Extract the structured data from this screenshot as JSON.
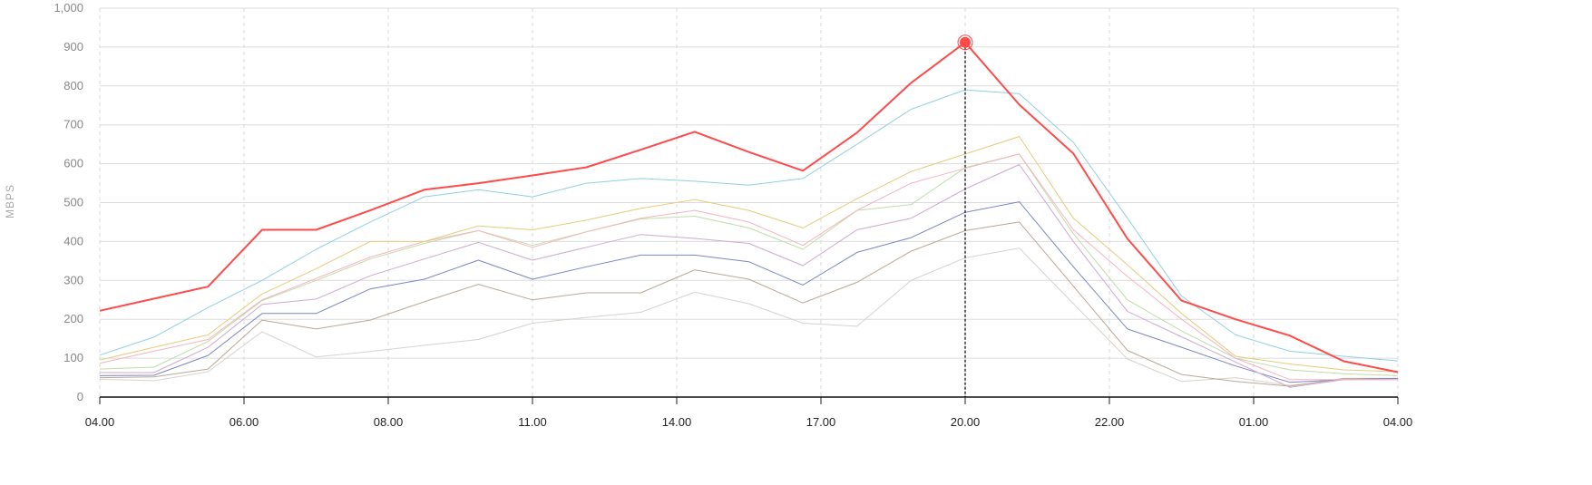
{
  "chart_data": {
    "type": "line",
    "title": "",
    "xlabel": "",
    "ylabel": "MBPS",
    "ylim": [
      0,
      1000
    ],
    "yticks": [
      "0",
      "100",
      "200",
      "300",
      "400",
      "500",
      "600",
      "700",
      "800",
      "900",
      "1,000"
    ],
    "xticks": [
      "04.00",
      "06.00",
      "08.00",
      "11.00",
      "14.00",
      "17.00",
      "20.00",
      "22.00",
      "01.00",
      "04.00"
    ],
    "grid": true,
    "points_per_series": 25,
    "series": [
      {
        "color": "#ff4a4a",
        "width": 2,
        "values": [
          222,
          253,
          284,
          430,
          430,
          480,
          533,
          550,
          570,
          591,
          636,
          682,
          630,
          582,
          680,
          808,
          912,
          752,
          626,
          407,
          248,
          200,
          158,
          92,
          64
        ]
      },
      {
        "color": "#8fd0e4",
        "width": 1,
        "values": [
          108,
          154,
          230,
          300,
          380,
          450,
          515,
          533,
          515,
          550,
          562,
          555,
          545,
          562,
          650,
          740,
          790,
          780,
          655,
          460,
          260,
          160,
          118,
          105,
          93
        ]
      },
      {
        "color": "#e3cd7a",
        "width": 1,
        "values": [
          95,
          128,
          160,
          265,
          330,
          400,
          400,
          440,
          430,
          455,
          485,
          508,
          480,
          435,
          510,
          580,
          625,
          670,
          460,
          340,
          215,
          105,
          85,
          70,
          65
        ]
      },
      {
        "color": "#f6b3c0",
        "width": 1,
        "values": [
          87,
          118,
          148,
          250,
          305,
          360,
          400,
          428,
          385,
          425,
          460,
          480,
          450,
          390,
          480,
          550,
          588,
          625,
          430,
          310,
          200,
          100,
          45,
          45,
          45
        ]
      },
      {
        "color": "#bfdda8",
        "width": 1,
        "values": [
          72,
          77,
          143,
          248,
          300,
          355,
          395,
          428,
          390,
          425,
          458,
          465,
          435,
          380,
          480,
          495,
          590,
          625,
          420,
          250,
          170,
          100,
          70,
          60,
          55
        ]
      },
      {
        "color": "#cfa9cf",
        "width": 1,
        "values": [
          63,
          63,
          128,
          238,
          252,
          312,
          355,
          398,
          352,
          385,
          418,
          408,
          395,
          338,
          430,
          460,
          535,
          598,
          400,
          220,
          155,
          90,
          25,
          45,
          45
        ]
      },
      {
        "color": "#7b86c4",
        "width": 1,
        "values": [
          55,
          56,
          107,
          215,
          215,
          278,
          303,
          352,
          303,
          335,
          365,
          365,
          348,
          288,
          372,
          410,
          475,
          502,
          335,
          175,
          128,
          80,
          38,
          45,
          48
        ]
      },
      {
        "color": "#bba896",
        "width": 1,
        "values": [
          50,
          52,
          72,
          198,
          175,
          198,
          245,
          290,
          250,
          268,
          268,
          327,
          303,
          242,
          295,
          375,
          428,
          450,
          285,
          120,
          58,
          40,
          28,
          48,
          48
        ]
      },
      {
        "color": "#d6d3cc",
        "width": 1,
        "values": [
          46,
          42,
          65,
          168,
          103,
          117,
          133,
          148,
          190,
          205,
          218,
          270,
          240,
          190,
          182,
          300,
          358,
          383,
          240,
          98,
          40,
          50,
          30,
          45,
          48
        ]
      }
    ],
    "hover": {
      "series": 0,
      "index": 16
    }
  }
}
